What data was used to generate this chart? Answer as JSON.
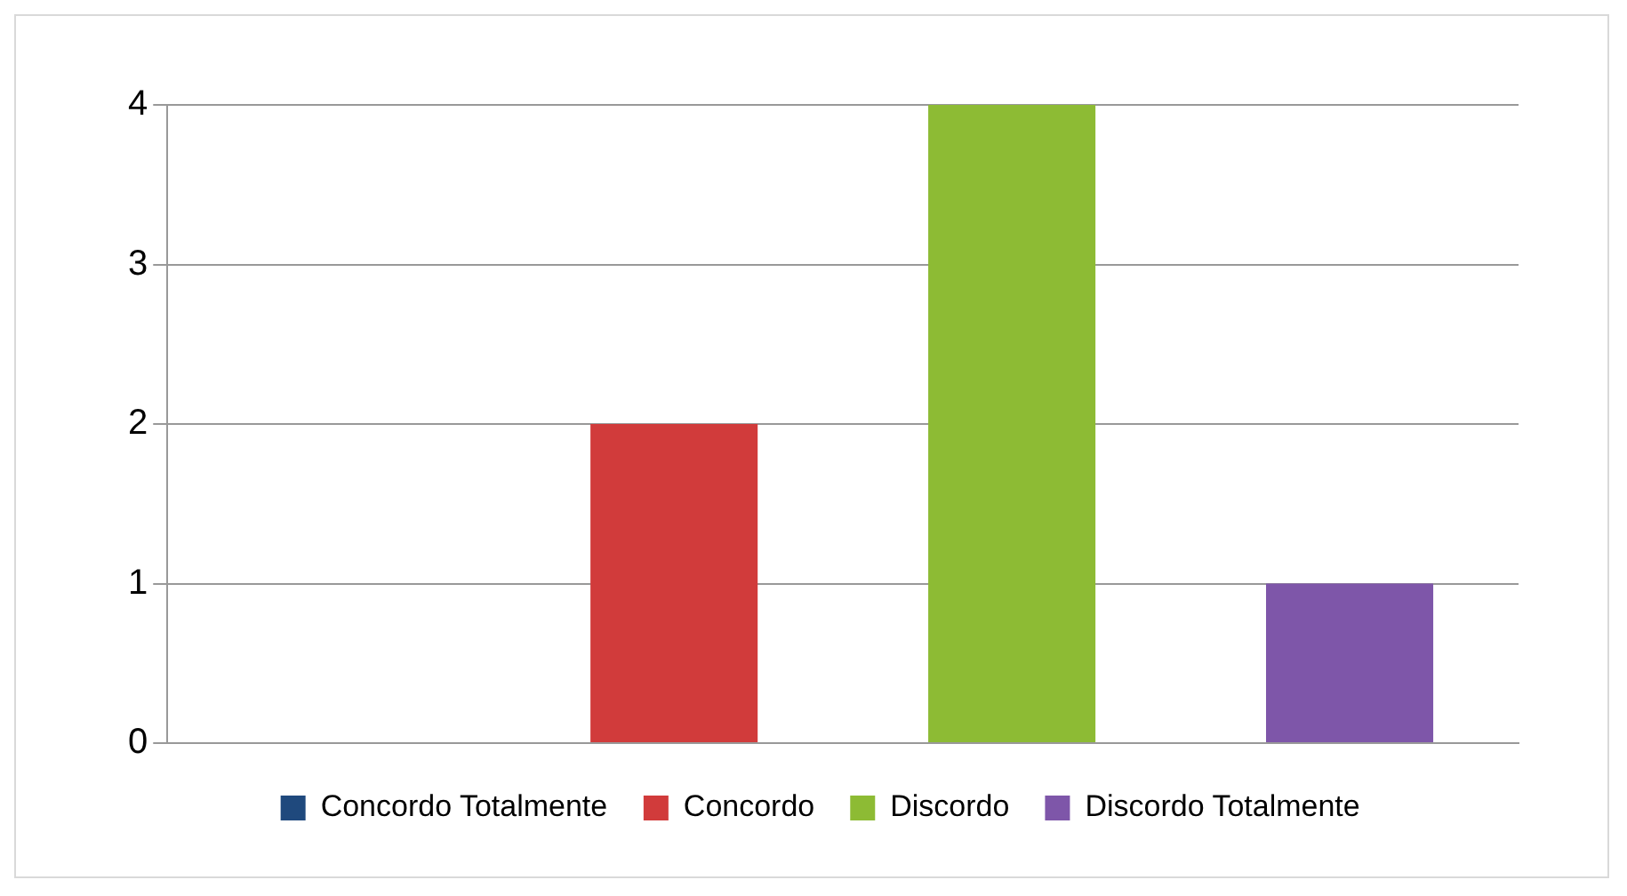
{
  "chart_data": {
    "type": "bar",
    "categories": [
      null,
      null,
      null,
      null
    ],
    "series": [
      {
        "name": "Concordo Totalmente",
        "color": "#1f497d",
        "values": [
          0,
          null,
          null,
          null
        ]
      },
      {
        "name": "Concordo",
        "color": "#d13b3b",
        "values": [
          null,
          2,
          null,
          null
        ]
      },
      {
        "name": "Discordo",
        "color": "#8dbb34",
        "values": [
          null,
          null,
          4,
          null
        ]
      },
      {
        "name": "Discordo Totalmente",
        "color": "#7e56a9",
        "values": [
          null,
          null,
          null,
          1
        ]
      }
    ],
    "ylim": [
      0,
      4
    ],
    "yticks": [
      0,
      1,
      2,
      3,
      4
    ],
    "grid": "y",
    "legend": "bottom"
  }
}
